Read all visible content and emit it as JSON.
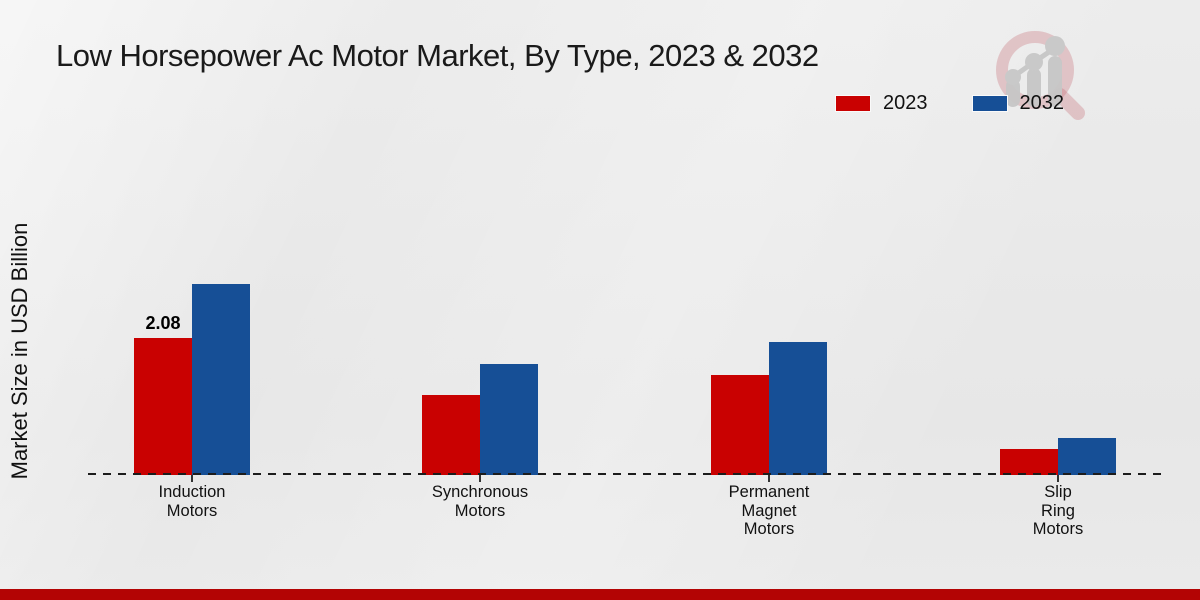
{
  "page": {
    "title": "Low Horsepower Ac Motor Market, By Type, 2023 & 2032",
    "y_axis_label": "Market Size in USD Billion"
  },
  "legend": {
    "items": [
      {
        "label": "2023",
        "color": "#c90101"
      },
      {
        "label": "2032",
        "color": "#164f96"
      }
    ]
  },
  "watermark": {
    "icon": "market-research-magnifier-growth-logo"
  },
  "footer": {
    "accent_color": "#b30404"
  },
  "chart_data": {
    "type": "bar",
    "title": "Low Horsepower Ac Motor Market, By Type, 2023 & 2032",
    "xlabel": "",
    "ylabel": "Market Size in USD Billion",
    "categories": [
      "Induction Motors",
      "Synchronous Motors",
      "Permanent Magnet Motors",
      "Slip Ring Motors"
    ],
    "category_label_lines": [
      [
        "Induction",
        "Motors"
      ],
      [
        "Synchronous",
        "Motors"
      ],
      [
        "Permanent",
        "Magnet",
        "Motors"
      ],
      [
        "Slip",
        "Ring",
        "Motors"
      ]
    ],
    "series": [
      {
        "name": "2023",
        "color": "#c90101",
        "values": [
          2.08,
          1.21,
          1.52,
          0.4
        ],
        "data_labels": [
          "2.08",
          "",
          "",
          ""
        ]
      },
      {
        "name": "2032",
        "color": "#164f96",
        "values": [
          2.9,
          1.68,
          2.02,
          0.56
        ],
        "data_labels": [
          "",
          "",
          "",
          ""
        ]
      }
    ],
    "ylim": [
      0,
      3.2
    ],
    "grid": false,
    "y_axis_ticks_visible": false,
    "legend_position": "top-right",
    "baseline_style": "dashed"
  }
}
